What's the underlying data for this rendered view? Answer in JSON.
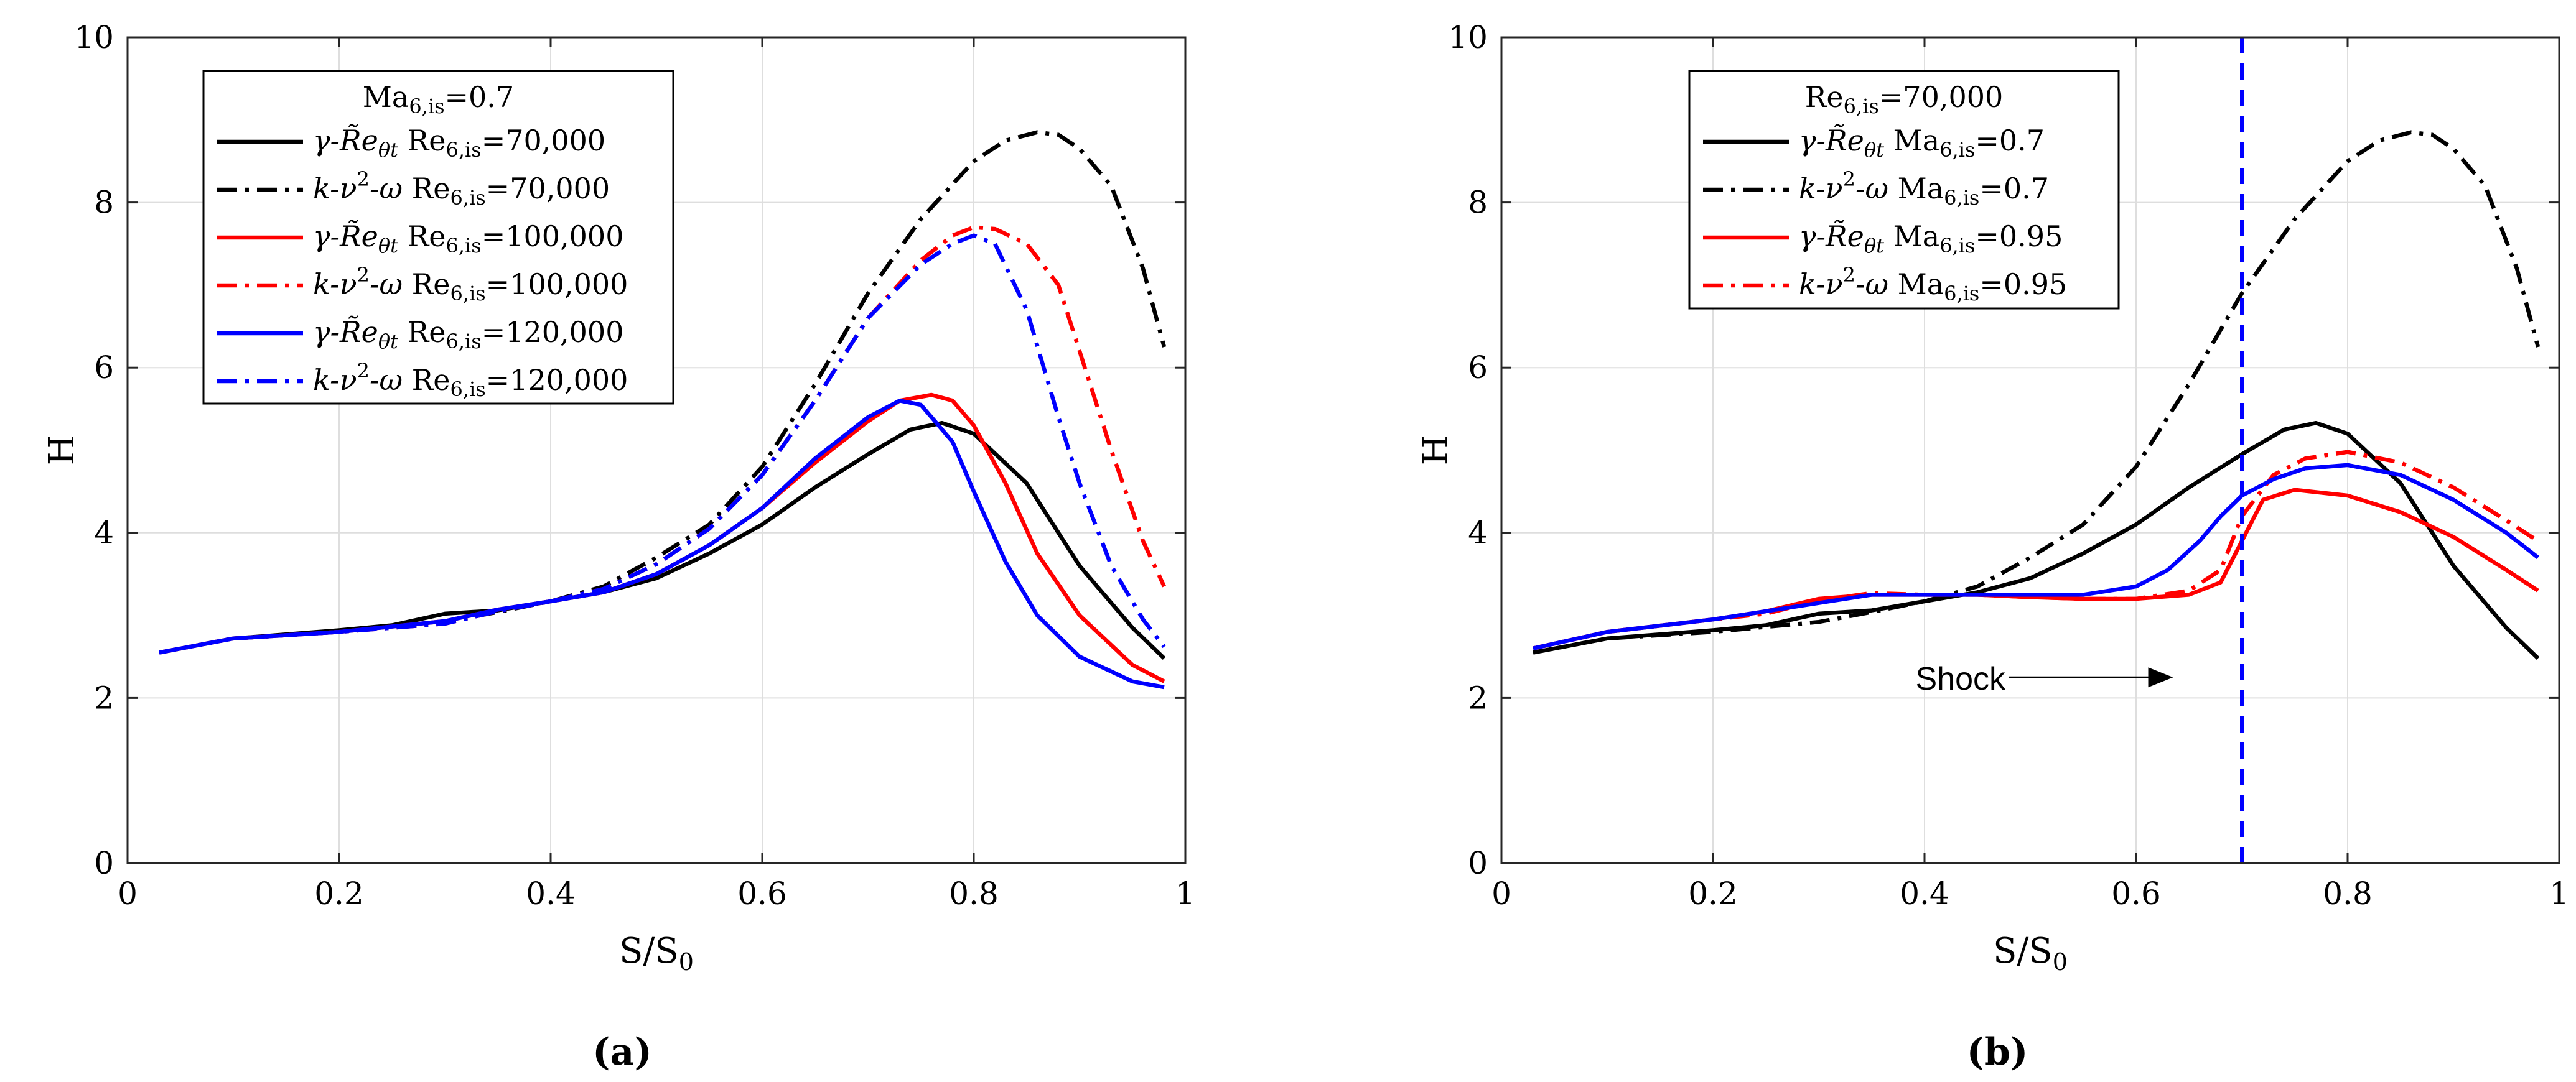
{
  "chart_data": [
    {
      "type": "line",
      "panel_label": "(a)",
      "xlabel": "S/S",
      "xlabel_sub": "0",
      "ylabel": "H",
      "xlim": [
        0,
        1
      ],
      "ylim": [
        0,
        10
      ],
      "grid": true,
      "legend_placement": "top-left",
      "xticks": [
        "0",
        "0.2",
        "0.4",
        "0.6",
        "0.8",
        "1"
      ],
      "yticks": [
        "0",
        "2",
        "4",
        "6",
        "8",
        "10"
      ],
      "legend_title": {
        "base": "Ma",
        "sub": "6,is",
        "value": "=0.7"
      },
      "series": [
        {
          "model": "γ-R̃e",
          "model_sub": "θt",
          "param": "Re",
          "param_sub": "6,is",
          "param_value": "=70,000",
          "color": "#000000",
          "dash": "solid",
          "x": [
            0.03,
            0.1,
            0.2,
            0.25,
            0.3,
            0.35,
            0.4,
            0.45,
            0.5,
            0.55,
            0.6,
            0.65,
            0.7,
            0.74,
            0.77,
            0.8,
            0.85,
            0.9,
            0.95,
            0.98
          ],
          "y": [
            2.55,
            2.72,
            2.82,
            2.88,
            3.02,
            3.06,
            3.17,
            3.28,
            3.45,
            3.75,
            4.1,
            4.55,
            4.95,
            5.25,
            5.33,
            5.2,
            4.6,
            3.6,
            2.85,
            2.48
          ]
        },
        {
          "model": "k-ν",
          "model_sup": "2",
          "model_tail": "-ω",
          "param": "Re",
          "param_sub": "6,is",
          "param_value": "=70,000",
          "color": "#000000",
          "dash": "dashdot",
          "x": [
            0.03,
            0.1,
            0.2,
            0.3,
            0.35,
            0.4,
            0.45,
            0.5,
            0.55,
            0.6,
            0.65,
            0.7,
            0.75,
            0.8,
            0.83,
            0.86,
            0.88,
            0.9,
            0.93,
            0.96,
            0.98
          ],
          "y": [
            2.55,
            2.72,
            2.8,
            2.92,
            3.04,
            3.17,
            3.35,
            3.7,
            4.1,
            4.8,
            5.8,
            6.9,
            7.8,
            8.5,
            8.75,
            8.85,
            8.82,
            8.65,
            8.2,
            7.2,
            6.25
          ]
        },
        {
          "model": "γ-R̃e",
          "model_sub": "θt",
          "param": "Re",
          "param_sub": "6,is",
          "param_value": "=100,000",
          "color": "#ff0000",
          "dash": "solid",
          "x": [
            0.03,
            0.1,
            0.2,
            0.3,
            0.35,
            0.4,
            0.45,
            0.5,
            0.55,
            0.6,
            0.65,
            0.7,
            0.73,
            0.76,
            0.78,
            0.8,
            0.83,
            0.86,
            0.9,
            0.95,
            0.98
          ],
          "y": [
            2.55,
            2.72,
            2.8,
            2.93,
            3.07,
            3.17,
            3.28,
            3.5,
            3.85,
            4.3,
            4.85,
            5.35,
            5.6,
            5.67,
            5.6,
            5.3,
            4.6,
            3.75,
            3.0,
            2.4,
            2.2
          ]
        },
        {
          "model": "k-ν",
          "model_sup": "2",
          "model_tail": "-ω",
          "param": "Re",
          "param_sub": "6,is",
          "param_value": "=100,000",
          "color": "#ff0000",
          "dash": "dashdot",
          "x": [
            0.03,
            0.1,
            0.2,
            0.3,
            0.35,
            0.4,
            0.45,
            0.5,
            0.55,
            0.6,
            0.65,
            0.7,
            0.75,
            0.78,
            0.8,
            0.82,
            0.85,
            0.88,
            0.9,
            0.93,
            0.96,
            0.98
          ],
          "y": [
            2.55,
            2.72,
            2.8,
            2.9,
            3.05,
            3.17,
            3.32,
            3.62,
            4.05,
            4.7,
            5.6,
            6.6,
            7.3,
            7.6,
            7.7,
            7.68,
            7.5,
            7.0,
            6.2,
            5.0,
            3.9,
            3.35
          ]
        },
        {
          "model": "γ-R̃e",
          "model_sub": "θt",
          "param": "Re",
          "param_sub": "6,is",
          "param_value": "=120,000",
          "color": "#0000ff",
          "dash": "solid",
          "x": [
            0.03,
            0.1,
            0.2,
            0.3,
            0.35,
            0.4,
            0.45,
            0.5,
            0.55,
            0.6,
            0.65,
            0.7,
            0.73,
            0.75,
            0.78,
            0.8,
            0.83,
            0.86,
            0.9,
            0.95,
            0.98
          ],
          "y": [
            2.55,
            2.72,
            2.8,
            2.93,
            3.07,
            3.17,
            3.28,
            3.5,
            3.85,
            4.3,
            4.9,
            5.4,
            5.6,
            5.55,
            5.1,
            4.5,
            3.65,
            3.0,
            2.5,
            2.2,
            2.13
          ]
        },
        {
          "model": "k-ν",
          "model_sup": "2",
          "model_tail": "-ω",
          "param": "Re",
          "param_sub": "6,is",
          "param_value": "=120,000",
          "color": "#0000ff",
          "dash": "dashdot",
          "x": [
            0.03,
            0.1,
            0.2,
            0.3,
            0.35,
            0.4,
            0.45,
            0.5,
            0.55,
            0.6,
            0.65,
            0.7,
            0.75,
            0.78,
            0.8,
            0.82,
            0.85,
            0.88,
            0.9,
            0.93,
            0.96,
            0.98
          ],
          "y": [
            2.55,
            2.72,
            2.8,
            2.9,
            3.05,
            3.17,
            3.32,
            3.62,
            4.05,
            4.7,
            5.6,
            6.6,
            7.25,
            7.5,
            7.6,
            7.5,
            6.7,
            5.4,
            4.6,
            3.6,
            2.95,
            2.62
          ]
        }
      ]
    },
    {
      "type": "line",
      "panel_label": "(b)",
      "xlabel": "S/S",
      "xlabel_sub": "0",
      "ylabel": "H",
      "xlim": [
        0,
        1
      ],
      "ylim": [
        0,
        10
      ],
      "grid": true,
      "legend_placement": "top-left",
      "xticks": [
        "0",
        "0.2",
        "0.4",
        "0.6",
        "0.8",
        "1"
      ],
      "yticks": [
        "0",
        "2",
        "4",
        "6",
        "8",
        "10"
      ],
      "legend_title": {
        "base": "Re",
        "sub": "6,is",
        "value": "=70,000"
      },
      "annotation": {
        "text": "Shock",
        "arrow_from_x": 0.48,
        "arrow_to_x": 0.635,
        "y": 2.25
      },
      "shock_line": {
        "x": 0.7,
        "color": "#0000ff",
        "dash": "dashed"
      },
      "series": [
        {
          "model": "γ-R̃e",
          "model_sub": "θt",
          "param": "Ma",
          "param_sub": "6,is",
          "param_value": "=0.7",
          "color": "#000000",
          "dash": "solid",
          "x": [
            0.03,
            0.1,
            0.2,
            0.25,
            0.3,
            0.35,
            0.4,
            0.45,
            0.5,
            0.55,
            0.6,
            0.65,
            0.7,
            0.74,
            0.77,
            0.8,
            0.85,
            0.9,
            0.95,
            0.98
          ],
          "y": [
            2.55,
            2.72,
            2.82,
            2.88,
            3.02,
            3.06,
            3.17,
            3.28,
            3.45,
            3.75,
            4.1,
            4.55,
            4.95,
            5.25,
            5.33,
            5.2,
            4.6,
            3.6,
            2.85,
            2.48
          ]
        },
        {
          "model": "k-ν",
          "model_sup": "2",
          "model_tail": "-ω",
          "param": "Ma",
          "param_sub": "6,is",
          "param_value": "=0.7",
          "color": "#000000",
          "dash": "dashdot",
          "x": [
            0.03,
            0.1,
            0.2,
            0.3,
            0.35,
            0.4,
            0.45,
            0.5,
            0.55,
            0.6,
            0.65,
            0.7,
            0.75,
            0.8,
            0.83,
            0.86,
            0.88,
            0.9,
            0.93,
            0.96,
            0.98
          ],
          "y": [
            2.55,
            2.72,
            2.8,
            2.92,
            3.04,
            3.17,
            3.35,
            3.7,
            4.1,
            4.8,
            5.8,
            6.9,
            7.8,
            8.5,
            8.75,
            8.85,
            8.82,
            8.65,
            8.2,
            7.2,
            6.25
          ]
        },
        {
          "model": "γ-R̃e",
          "model_sub": "θt",
          "param": "Ma",
          "param_sub": "6,is",
          "param_value": "=0.95",
          "color": "#ff0000",
          "dash": "solid",
          "x": [
            0.03,
            0.1,
            0.2,
            0.25,
            0.3,
            0.35,
            0.4,
            0.45,
            0.5,
            0.55,
            0.6,
            0.65,
            0.68,
            0.7,
            0.72,
            0.75,
            0.8,
            0.85,
            0.9,
            0.95,
            0.98
          ],
          "y": [
            2.6,
            2.8,
            2.95,
            3.05,
            3.2,
            3.25,
            3.25,
            3.25,
            3.22,
            3.2,
            3.2,
            3.25,
            3.4,
            3.9,
            4.4,
            4.52,
            4.45,
            4.25,
            3.95,
            3.55,
            3.3
          ]
        },
        {
          "model": "k-ν",
          "model_sup": "2",
          "model_tail": "-ω",
          "param": "Ma",
          "param_sub": "6,is",
          "param_value": "=0.95",
          "color": "#ff0000",
          "dash": "dashdot",
          "x": [
            0.03,
            0.1,
            0.2,
            0.25,
            0.3,
            0.35,
            0.4,
            0.45,
            0.5,
            0.55,
            0.6,
            0.65,
            0.68,
            0.7,
            0.73,
            0.76,
            0.8,
            0.85,
            0.9,
            0.95,
            0.98
          ],
          "y": [
            2.6,
            2.8,
            2.95,
            3.02,
            3.18,
            3.27,
            3.25,
            3.25,
            3.22,
            3.2,
            3.2,
            3.3,
            3.55,
            4.2,
            4.7,
            4.9,
            4.98,
            4.85,
            4.55,
            4.15,
            3.9
          ]
        },
        {
          "model": "",
          "param": "",
          "param_sub": "",
          "param_value": "",
          "color": "#0000ff",
          "dash": "solid",
          "in_legend": false,
          "x": [
            0.03,
            0.1,
            0.2,
            0.3,
            0.35,
            0.4,
            0.45,
            0.5,
            0.55,
            0.6,
            0.63,
            0.66,
            0.68,
            0.7,
            0.73,
            0.76,
            0.8,
            0.85,
            0.9,
            0.95,
            0.98
          ],
          "y": [
            2.6,
            2.8,
            2.95,
            3.15,
            3.25,
            3.25,
            3.25,
            3.25,
            3.25,
            3.35,
            3.55,
            3.9,
            4.2,
            4.45,
            4.65,
            4.78,
            4.82,
            4.7,
            4.4,
            4.0,
            3.7
          ]
        }
      ]
    }
  ]
}
